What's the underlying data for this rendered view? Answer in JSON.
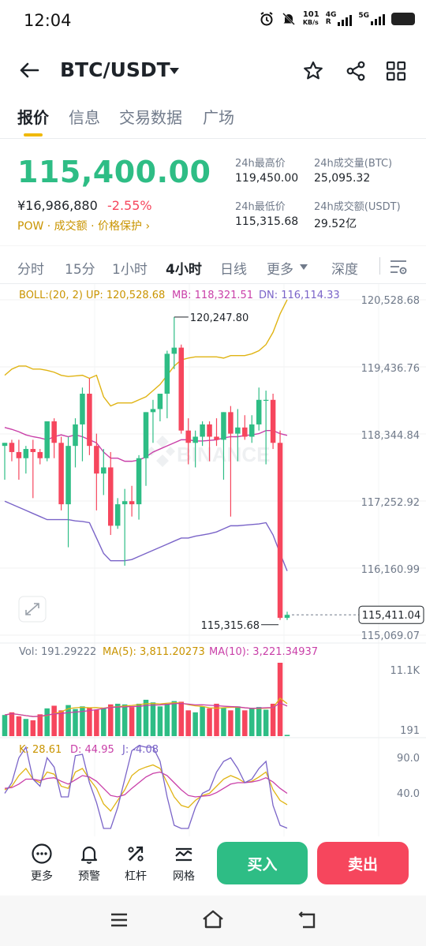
{
  "status_bar": {
    "time": "12:04",
    "net_speed_top": "101",
    "net_speed_bottom": "KB/s",
    "sim1": "4G",
    "sim1_sub": "R",
    "sim2": "5G"
  },
  "header": {
    "pair": "BTC/USDT"
  },
  "tabs": [
    {
      "label": "报价",
      "active": true
    },
    {
      "label": "信息",
      "active": false
    },
    {
      "label": "交易数据",
      "active": false
    },
    {
      "label": "广场",
      "active": false
    }
  ],
  "price": {
    "last": "115,400.00",
    "cny": "¥16,986,880",
    "change": "-2.55%",
    "tags": "POW · 成交额 · 价格保护 ›",
    "high_label": "24h最高价",
    "high_value": "119,450.00",
    "low_label": "24h最低价",
    "low_value": "115,315.68",
    "vol_btc_label": "24h成交量(BTC)",
    "vol_btc_value": "25,095.32",
    "vol_usdt_label": "24h成交额(USDT)",
    "vol_usdt_value": "29.52亿"
  },
  "intervals": [
    {
      "label": "分时",
      "active": false
    },
    {
      "label": "15分",
      "active": false
    },
    {
      "label": "1小时",
      "active": false
    },
    {
      "label": "4小时",
      "active": true
    },
    {
      "label": "日线",
      "active": false
    },
    {
      "label": "更多",
      "active": false
    },
    {
      "label": "深度",
      "active": false
    }
  ],
  "chart_data": {
    "type": "candlestick",
    "boll_label": "BOLL:(20, 2)",
    "boll_up": "UP: 120,528.68",
    "boll_mb": "MB: 118,321.51",
    "boll_dn": "DN: 116,114.33",
    "price_axis": [
      "120,528.68",
      "119,436.76",
      "118,344.84",
      "117,252.92",
      "116,160.99",
      "115,069.07"
    ],
    "price_axis_values": [
      120528.68,
      119436.76,
      118344.84,
      117252.92,
      116160.99,
      115069.07
    ],
    "high_marker": "120,247.80",
    "low_marker": "115,315.68",
    "current_price_tag": "115,411.04",
    "watermark": "BINANCE",
    "vol_label": "Vol: 191.29222",
    "vol_ma5": "MA(5): 3,811.20273",
    "vol_ma10": "MA(10): 3,221.34937",
    "vol_axis": [
      "11.1K",
      "191"
    ],
    "kdj_k": "K: 28.61",
    "kdj_d": "D: 44.95",
    "kdj_j": "J: -4.08",
    "kdj_axis": [
      "90.0",
      "40.0"
    ],
    "colors": {
      "up": "#2ebd85",
      "down": "#f6465d",
      "boll_up": "#e0b414",
      "boll_mb": "#c93fa8",
      "boll_dn": "#7a64c8"
    },
    "candles": [
      {
        "o": 118150,
        "h": 118200,
        "l": 117600,
        "c": 118200
      },
      {
        "o": 118200,
        "h": 118250,
        "l": 117900,
        "c": 118050
      },
      {
        "o": 118050,
        "h": 118250,
        "l": 117600,
        "c": 117950
      },
      {
        "o": 117950,
        "h": 118150,
        "l": 117700,
        "c": 118100
      },
      {
        "o": 118100,
        "h": 118250,
        "l": 117300,
        "c": 118050
      },
      {
        "o": 118050,
        "h": 118100,
        "l": 117850,
        "c": 117950
      },
      {
        "o": 117950,
        "h": 118550,
        "l": 117900,
        "c": 118550
      },
      {
        "o": 118550,
        "h": 118600,
        "l": 117950,
        "c": 118200
      },
      {
        "o": 118200,
        "h": 118300,
        "l": 117100,
        "c": 117200
      },
      {
        "o": 117200,
        "h": 118300,
        "l": 116500,
        "c": 118150
      },
      {
        "o": 118150,
        "h": 118600,
        "l": 117800,
        "c": 118500
      },
      {
        "o": 118500,
        "h": 119100,
        "l": 117900,
        "c": 119000
      },
      {
        "o": 119000,
        "h": 119250,
        "l": 118000,
        "c": 118150
      },
      {
        "o": 118150,
        "h": 118350,
        "l": 117100,
        "c": 117700
      },
      {
        "o": 117700,
        "h": 118100,
        "l": 117350,
        "c": 117800
      },
      {
        "o": 117800,
        "h": 118050,
        "l": 116700,
        "c": 116850
      },
      {
        "o": 116850,
        "h": 117300,
        "l": 116800,
        "c": 117200
      },
      {
        "o": 117200,
        "h": 117450,
        "l": 116200,
        "c": 117250
      },
      {
        "o": 117250,
        "h": 117500,
        "l": 117000,
        "c": 117200
      },
      {
        "o": 117200,
        "h": 118000,
        "l": 116950,
        "c": 117950
      },
      {
        "o": 117950,
        "h": 118700,
        "l": 117500,
        "c": 118700
      },
      {
        "o": 118700,
        "h": 118900,
        "l": 118200,
        "c": 118750
      },
      {
        "o": 118750,
        "h": 119000,
        "l": 118550,
        "c": 119000
      },
      {
        "o": 119000,
        "h": 119700,
        "l": 118600,
        "c": 119650
      },
      {
        "o": 119650,
        "h": 120248,
        "l": 119400,
        "c": 119750
      },
      {
        "o": 119750,
        "h": 119800,
        "l": 118350,
        "c": 118400
      },
      {
        "o": 118400,
        "h": 118600,
        "l": 117850,
        "c": 118200
      },
      {
        "o": 118200,
        "h": 118400,
        "l": 117800,
        "c": 118300
      },
      {
        "o": 118300,
        "h": 118550,
        "l": 118150,
        "c": 118500
      },
      {
        "o": 118500,
        "h": 118550,
        "l": 117900,
        "c": 118300
      },
      {
        "o": 118300,
        "h": 118600,
        "l": 118150,
        "c": 118250
      },
      {
        "o": 118250,
        "h": 118700,
        "l": 117600,
        "c": 118700
      },
      {
        "o": 118700,
        "h": 118800,
        "l": 117000,
        "c": 118350
      },
      {
        "o": 118350,
        "h": 118750,
        "l": 117900,
        "c": 118450
      },
      {
        "o": 118450,
        "h": 118650,
        "l": 118250,
        "c": 118300
      },
      {
        "o": 118300,
        "h": 118650,
        "l": 118200,
        "c": 118500
      },
      {
        "o": 118500,
        "h": 119100,
        "l": 118400,
        "c": 118900
      },
      {
        "o": 118900,
        "h": 119050,
        "l": 117850,
        "c": 118900
      },
      {
        "o": 118900,
        "h": 119000,
        "l": 118100,
        "c": 118200
      },
      {
        "o": 118200,
        "h": 118400,
        "l": 115316,
        "c": 115350
      },
      {
        "o": 115350,
        "h": 115450,
        "l": 115316,
        "c": 115400
      }
    ],
    "volume": [
      3200,
      3600,
      3000,
      2600,
      2400,
      3300,
      4200,
      4600,
      3900,
      4700,
      4100,
      4500,
      4300,
      4000,
      4300,
      4800,
      4900,
      4800,
      4400,
      4900,
      5500,
      5100,
      4500,
      4900,
      5300,
      5200,
      3900,
      3600,
      4500,
      4200,
      4900,
      4300,
      3900,
      4500,
      3900,
      4300,
      4400,
      4000,
      4900,
      11100,
      191
    ],
    "boll_up_series": [
      119300,
      119400,
      119450,
      119450,
      119400,
      119400,
      119380,
      119350,
      119300,
      119280,
      119290,
      119300,
      119250,
      119300,
      118950,
      118800,
      118850,
      118850,
      118850,
      118900,
      118950,
      119050,
      119150,
      119300,
      119450,
      119550,
      119580,
      119600,
      119600,
      119600,
      119600,
      119580,
      119620,
      119620,
      119620,
      119650,
      119700,
      119800,
      120000,
      120300,
      120529
    ],
    "boll_mb_series": [
      118450,
      118420,
      118380,
      118330,
      118300,
      118280,
      118250,
      118300,
      118330,
      118300,
      118330,
      118300,
      118250,
      118200,
      118050,
      117950,
      117950,
      117900,
      117900,
      117920,
      117970,
      118050,
      118100,
      118150,
      118200,
      118250,
      118250,
      118230,
      118230,
      118240,
      118250,
      118280,
      118300,
      118300,
      118320,
      118330,
      118350,
      118400,
      118400,
      118350,
      118322
    ],
    "boll_dn_series": [
      117250,
      117200,
      117150,
      117100,
      117050,
      117000,
      116950,
      116950,
      116950,
      116950,
      116930,
      116920,
      116900,
      116650,
      116400,
      116280,
      116280,
      116280,
      116300,
      116350,
      116400,
      116450,
      116500,
      116550,
      116600,
      116650,
      116650,
      116680,
      116700,
      116720,
      116750,
      116800,
      116850,
      116850,
      116860,
      116870,
      116880,
      116900,
      116700,
      116400,
      116114
    ],
    "kdj_k_series": [
      50,
      55,
      70,
      80,
      65,
      60,
      75,
      72,
      55,
      52,
      75,
      80,
      65,
      52,
      30,
      20,
      35,
      50,
      70,
      78,
      82,
      85,
      80,
      60,
      40,
      28,
      25,
      35,
      42,
      45,
      55,
      65,
      70,
      66,
      60,
      62,
      68,
      75,
      50,
      35,
      29
    ],
    "kdj_d_series": [
      52,
      53,
      58,
      65,
      65,
      63,
      66,
      67,
      62,
      58,
      64,
      70,
      68,
      62,
      52,
      42,
      40,
      43,
      52,
      60,
      68,
      73,
      75,
      70,
      60,
      50,
      42,
      40,
      41,
      42,
      46,
      52,
      58,
      60,
      60,
      61,
      63,
      67,
      61,
      52,
      45
    ],
    "kdj_j_series": [
      45,
      60,
      95,
      110,
      65,
      55,
      95,
      82,
      40,
      40,
      98,
      100,
      60,
      32,
      -15,
      -25,
      25,
      65,
      105,
      115,
      110,
      110,
      90,
      40,
      0,
      -15,
      -10,
      25,
      45,
      50,
      75,
      90,
      95,
      80,
      60,
      65,
      80,
      90,
      28,
      0,
      -4
    ]
  },
  "actions": [
    {
      "label": "更多",
      "icon": "more-circle-icon"
    },
    {
      "label": "预警",
      "icon": "bell-icon"
    },
    {
      "label": "杠杆",
      "icon": "percent-icon"
    },
    {
      "label": "网格",
      "icon": "grid-trade-icon"
    }
  ],
  "buy_label": "买入",
  "sell_label": "卖出"
}
